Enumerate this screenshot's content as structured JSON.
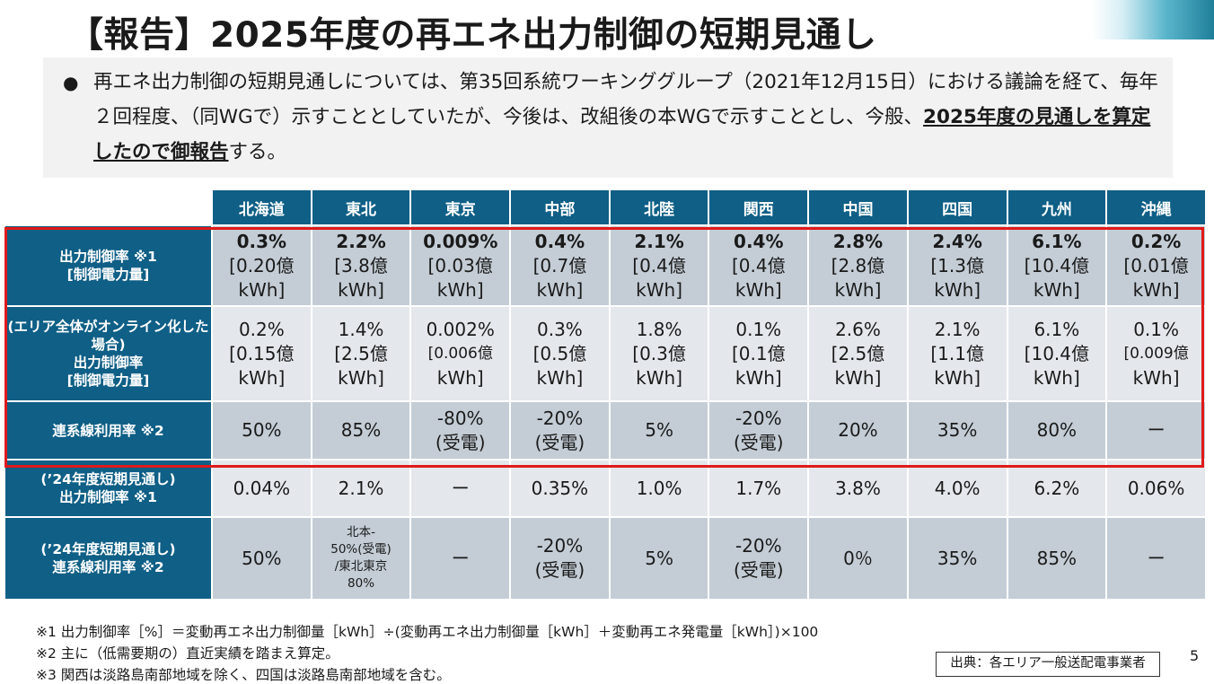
{
  "title": "【報告】2025年度の再エネ出力制御の短期見通し",
  "bullet": {
    "text_a": "再エネ出力制御の短期見通しについては、第35回系統ワーキンググループ（2021年12月15日）における議論を経て、毎年２回程度、（同WGで）示すこととしていたが、今後は、改組後の本WGで示すこととし、今般、",
    "text_b": "2025年度の見通しを算定したので御報告",
    "text_c": "する。"
  },
  "table": {
    "headers": [
      "北海道",
      "東北",
      "東京",
      "中部",
      "北陸",
      "関西",
      "中国",
      "四国",
      "九州",
      "沖縄"
    ],
    "row1": {
      "label_a": "出力制御率 ※1",
      "label_b": "[制御電力量]",
      "rates": [
        "0.3%",
        "2.2%",
        "0.009%",
        "0.4%",
        "2.1%",
        "0.4%",
        "2.8%",
        "2.4%",
        "6.1%",
        "0.2%"
      ],
      "amounts": [
        "[0.20億",
        "[3.8億",
        "[0.03億",
        "[0.7億",
        "[0.4億",
        "[0.4億",
        "[2.8億",
        "[1.3億",
        "[10.4億",
        "[0.01億"
      ],
      "units": [
        "kWh]",
        "kWh]",
        "kWh]",
        "kWh]",
        "kWh]",
        "kWh]",
        "kWh]",
        "kWh]",
        "kWh]",
        "kWh]"
      ]
    },
    "row2": {
      "label_a": "(エリア全体がオンライン化した場合)",
      "label_b": "出力制御率",
      "label_c": "[制御電力量]",
      "rates": [
        "0.2%",
        "1.4%",
        "0.002%",
        "0.3%",
        "1.8%",
        "0.1%",
        "2.6%",
        "2.1%",
        "6.1%",
        "0.1%"
      ],
      "amounts": [
        "[0.15億",
        "[2.5億",
        "[0.006億",
        "[0.5億",
        "[0.3億",
        "[0.1億",
        "[2.5億",
        "[1.1億",
        "[10.4億",
        "[0.009億"
      ],
      "units": [
        "kWh]",
        "kWh]",
        "kWh]",
        "kWh]",
        "kWh]",
        "kWh]",
        "kWh]",
        "kWh]",
        "kWh]",
        "kWh]"
      ]
    },
    "row3": {
      "label": "連系線利用率 ※2",
      "line1": [
        "50%",
        "85%",
        "-80%",
        "-20%",
        "5%",
        "-20%",
        "20%",
        "35%",
        "80%",
        "ー"
      ],
      "line2": [
        "",
        "",
        "(受電)",
        "(受電)",
        "",
        "(受電)",
        "",
        "",
        "",
        ""
      ]
    },
    "row4": {
      "label_a": "(’24年度短期見通し)",
      "label_b": "出力制御率 ※1",
      "values": [
        "0.04%",
        "2.1%",
        "ー",
        "0.35%",
        "1.0%",
        "1.7%",
        "3.8%",
        "4.0%",
        "6.2%",
        "0.06%"
      ]
    },
    "row5": {
      "label_a": "(’24年度短期見通し)",
      "label_b": "連系線利用率 ※2",
      "line1": [
        "50%",
        "",
        "ー",
        "-20%",
        "5%",
        "-20%",
        "0％",
        "35%",
        "85%",
        "ー"
      ],
      "line2": [
        "",
        "",
        "",
        "(受電)",
        "",
        "(受電)",
        "",
        "",
        "",
        ""
      ],
      "tohoku_lines": [
        "北本-",
        "50%(受電)",
        "/東北東京",
        "80%"
      ]
    }
  },
  "notes": [
    "※1 出力制御率［%］＝変動再エネ出力制御量［kWh］÷(変動再エネ出力制御量［kWh］＋変動再エネ発電量［kWh］)×100",
    "※2 主に（低需要期の）直近実績を踏まえ算定。",
    "※3 関西は淡路島南部地域を除く、四国は淡路島南部地域を含む。"
  ],
  "source": "出典：各エリア一般送配電事業者",
  "page_number": "5"
}
